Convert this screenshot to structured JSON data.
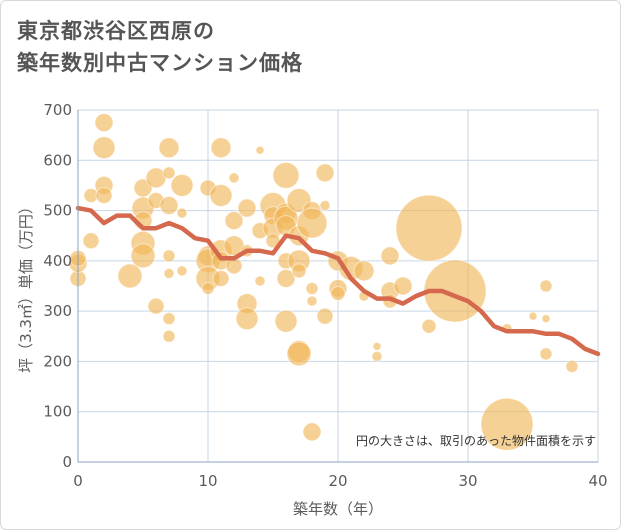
{
  "chart_data": {
    "type": "scatter",
    "title_lines": [
      "東京都渋谷区西原の",
      "築年数別中古マンション価格"
    ],
    "xlabel": "築年数（年）",
    "ylabel": "坪（3.3㎡）単価（万円）",
    "xlim": [
      0,
      40
    ],
    "ylim": [
      0,
      700
    ],
    "xticks": [
      0,
      10,
      20,
      30,
      40
    ],
    "yticks": [
      0,
      100,
      200,
      300,
      400,
      500,
      600,
      700
    ],
    "grid": true,
    "note": "円の大きさは、取引のあった物件面積を示す",
    "colors": {
      "bubble": "#f0b455",
      "trend": "#d4694d",
      "grid": "#c8d6e6",
      "frame": "#c8d6e6"
    },
    "series": [
      {
        "kind": "bubble",
        "points": [
          {
            "x": 0,
            "y": 365,
            "s": 8
          },
          {
            "x": 0,
            "y": 395,
            "s": 9
          },
          {
            "x": 0,
            "y": 405,
            "s": 8
          },
          {
            "x": 1,
            "y": 440,
            "s": 8
          },
          {
            "x": 1,
            "y": 530,
            "s": 7
          },
          {
            "x": 2,
            "y": 675,
            "s": 9
          },
          {
            "x": 2,
            "y": 625,
            "s": 11
          },
          {
            "x": 2,
            "y": 550,
            "s": 9
          },
          {
            "x": 2,
            "y": 530,
            "s": 8
          },
          {
            "x": 4,
            "y": 370,
            "s": 12
          },
          {
            "x": 5,
            "y": 545,
            "s": 9
          },
          {
            "x": 5,
            "y": 505,
            "s": 11
          },
          {
            "x": 5,
            "y": 480,
            "s": 9
          },
          {
            "x": 5,
            "y": 435,
            "s": 12
          },
          {
            "x": 5,
            "y": 410,
            "s": 12
          },
          {
            "x": 6,
            "y": 565,
            "s": 10
          },
          {
            "x": 6,
            "y": 520,
            "s": 8
          },
          {
            "x": 6,
            "y": 310,
            "s": 8
          },
          {
            "x": 7,
            "y": 625,
            "s": 10
          },
          {
            "x": 7,
            "y": 575,
            "s": 6
          },
          {
            "x": 7,
            "y": 510,
            "s": 9
          },
          {
            "x": 7,
            "y": 410,
            "s": 6
          },
          {
            "x": 7,
            "y": 375,
            "s": 5
          },
          {
            "x": 7,
            "y": 285,
            "s": 6
          },
          {
            "x": 7,
            "y": 250,
            "s": 6
          },
          {
            "x": 8,
            "y": 550,
            "s": 11
          },
          {
            "x": 8,
            "y": 495,
            "s": 5
          },
          {
            "x": 8,
            "y": 380,
            "s": 5
          },
          {
            "x": 10,
            "y": 545,
            "s": 8
          },
          {
            "x": 10,
            "y": 410,
            "s": 10
          },
          {
            "x": 10,
            "y": 400,
            "s": 12
          },
          {
            "x": 10,
            "y": 365,
            "s": 12
          },
          {
            "x": 10,
            "y": 345,
            "s": 6
          },
          {
            "x": 11,
            "y": 625,
            "s": 10
          },
          {
            "x": 11,
            "y": 530,
            "s": 11
          },
          {
            "x": 11,
            "y": 420,
            "s": 11
          },
          {
            "x": 11,
            "y": 400,
            "s": 9
          },
          {
            "x": 11,
            "y": 365,
            "s": 8
          },
          {
            "x": 12,
            "y": 565,
            "s": 5
          },
          {
            "x": 12,
            "y": 480,
            "s": 9
          },
          {
            "x": 12,
            "y": 430,
            "s": 10
          },
          {
            "x": 12,
            "y": 390,
            "s": 8
          },
          {
            "x": 13,
            "y": 505,
            "s": 9
          },
          {
            "x": 13,
            "y": 420,
            "s": 6
          },
          {
            "x": 13,
            "y": 315,
            "s": 10
          },
          {
            "x": 13,
            "y": 285,
            "s": 11
          },
          {
            "x": 14,
            "y": 620,
            "s": 4
          },
          {
            "x": 14,
            "y": 460,
            "s": 8
          },
          {
            "x": 14,
            "y": 360,
            "s": 5
          },
          {
            "x": 15,
            "y": 510,
            "s": 13
          },
          {
            "x": 15,
            "y": 490,
            "s": 9
          },
          {
            "x": 15,
            "y": 465,
            "s": 10
          },
          {
            "x": 15,
            "y": 440,
            "s": 7
          },
          {
            "x": 16,
            "y": 570,
            "s": 13
          },
          {
            "x": 16,
            "y": 495,
            "s": 10
          },
          {
            "x": 16,
            "y": 485,
            "s": 12
          },
          {
            "x": 16,
            "y": 470,
            "s": 10
          },
          {
            "x": 16,
            "y": 400,
            "s": 8
          },
          {
            "x": 16,
            "y": 365,
            "s": 9
          },
          {
            "x": 16,
            "y": 280,
            "s": 11
          },
          {
            "x": 17,
            "y": 520,
            "s": 12
          },
          {
            "x": 17,
            "y": 450,
            "s": 10
          },
          {
            "x": 17,
            "y": 400,
            "s": 11
          },
          {
            "x": 17,
            "y": 380,
            "s": 7
          },
          {
            "x": 17,
            "y": 220,
            "s": 11
          },
          {
            "x": 17,
            "y": 215,
            "s": 12
          },
          {
            "x": 18,
            "y": 500,
            "s": 9
          },
          {
            "x": 18,
            "y": 475,
            "s": 15
          },
          {
            "x": 18,
            "y": 345,
            "s": 6
          },
          {
            "x": 18,
            "y": 320,
            "s": 5
          },
          {
            "x": 18,
            "y": 60,
            "s": 9
          },
          {
            "x": 19,
            "y": 575,
            "s": 9
          },
          {
            "x": 19,
            "y": 510,
            "s": 5
          },
          {
            "x": 19,
            "y": 290,
            "s": 8
          },
          {
            "x": 20,
            "y": 400,
            "s": 10
          },
          {
            "x": 20,
            "y": 345,
            "s": 9
          },
          {
            "x": 20,
            "y": 335,
            "s": 7
          },
          {
            "x": 21,
            "y": 385,
            "s": 12
          },
          {
            "x": 22,
            "y": 380,
            "s": 10
          },
          {
            "x": 22,
            "y": 330,
            "s": 5
          },
          {
            "x": 23,
            "y": 230,
            "s": 4
          },
          {
            "x": 23,
            "y": 210,
            "s": 5
          },
          {
            "x": 24,
            "y": 410,
            "s": 9
          },
          {
            "x": 24,
            "y": 340,
            "s": 9
          },
          {
            "x": 24,
            "y": 320,
            "s": 7
          },
          {
            "x": 25,
            "y": 350,
            "s": 9
          },
          {
            "x": 27,
            "y": 465,
            "s": 33
          },
          {
            "x": 27,
            "y": 270,
            "s": 7
          },
          {
            "x": 29,
            "y": 340,
            "s": 31
          },
          {
            "x": 33,
            "y": 75,
            "s": 26
          },
          {
            "x": 33,
            "y": 265,
            "s": 5
          },
          {
            "x": 35,
            "y": 290,
            "s": 4
          },
          {
            "x": 36,
            "y": 350,
            "s": 6
          },
          {
            "x": 36,
            "y": 285,
            "s": 4
          },
          {
            "x": 36,
            "y": 215,
            "s": 6
          },
          {
            "x": 38,
            "y": 190,
            "s": 6
          }
        ]
      },
      {
        "kind": "line",
        "x": [
          0,
          1,
          2,
          3,
          4,
          5,
          6,
          7,
          8,
          9,
          10,
          11,
          12,
          13,
          14,
          15,
          16,
          17,
          18,
          19,
          20,
          21,
          22,
          23,
          24,
          25,
          26,
          27,
          28,
          29,
          30,
          31,
          32,
          33,
          34,
          35,
          36,
          37,
          38,
          39,
          40
        ],
        "y": [
          505,
          500,
          475,
          490,
          490,
          465,
          465,
          475,
          465,
          445,
          440,
          405,
          405,
          420,
          420,
          415,
          450,
          445,
          420,
          415,
          405,
          365,
          340,
          325,
          325,
          315,
          330,
          340,
          340,
          330,
          320,
          300,
          270,
          260,
          260,
          260,
          255,
          255,
          245,
          225,
          215
        ]
      }
    ]
  }
}
